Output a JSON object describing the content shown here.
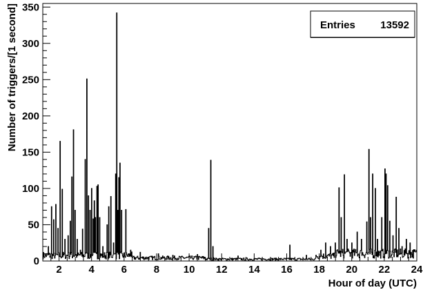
{
  "chart_data": {
    "type": "histogram",
    "title": "",
    "xlabel": "Hour of day (UTC)",
    "ylabel": "Number of triggers/[1 second]",
    "xlim": [
      1,
      24
    ],
    "ylim": [
      0,
      355
    ],
    "x_ticks": [
      2,
      4,
      6,
      8,
      10,
      12,
      14,
      16,
      18,
      20,
      22,
      24
    ],
    "y_ticks": [
      0,
      50,
      100,
      150,
      200,
      250,
      300,
      350
    ],
    "grid": false,
    "legend": "none",
    "stats_box": {
      "label": "Entries",
      "value": "13592",
      "placement": "top-right"
    },
    "baseline": {
      "description_ranges": [
        {
          "from": 1.0,
          "to": 6.5,
          "level": 9
        },
        {
          "from": 6.5,
          "to": 11.0,
          "level": 5
        },
        {
          "from": 11.0,
          "to": 17.8,
          "level": 3
        },
        {
          "from": 17.8,
          "to": 19.0,
          "level": 8
        },
        {
          "from": 19.0,
          "to": 24.0,
          "level": 12
        }
      ]
    },
    "spikes": [
      {
        "x": 1.35,
        "y": 20
      },
      {
        "x": 1.55,
        "y": 75
      },
      {
        "x": 1.68,
        "y": 57
      },
      {
        "x": 1.82,
        "y": 78
      },
      {
        "x": 1.95,
        "y": 45
      },
      {
        "x": 2.08,
        "y": 165
      },
      {
        "x": 2.2,
        "y": 99
      },
      {
        "x": 2.35,
        "y": 30
      },
      {
        "x": 2.55,
        "y": 35
      },
      {
        "x": 2.68,
        "y": 55
      },
      {
        "x": 2.8,
        "y": 116
      },
      {
        "x": 2.9,
        "y": 181
      },
      {
        "x": 3.0,
        "y": 70
      },
      {
        "x": 3.12,
        "y": 30
      },
      {
        "x": 3.3,
        "y": 15
      },
      {
        "x": 3.45,
        "y": 44
      },
      {
        "x": 3.62,
        "y": 140
      },
      {
        "x": 3.7,
        "y": 251
      },
      {
        "x": 3.82,
        "y": 90
      },
      {
        "x": 3.92,
        "y": 70
      },
      {
        "x": 4.02,
        "y": 100
      },
      {
        "x": 4.1,
        "y": 58
      },
      {
        "x": 4.18,
        "y": 83
      },
      {
        "x": 4.25,
        "y": 60
      },
      {
        "x": 4.32,
        "y": 103
      },
      {
        "x": 4.4,
        "y": 105
      },
      {
        "x": 4.5,
        "y": 60
      },
      {
        "x": 4.7,
        "y": 20
      },
      {
        "x": 4.95,
        "y": 50
      },
      {
        "x": 5.05,
        "y": 75
      },
      {
        "x": 5.2,
        "y": 89
      },
      {
        "x": 5.35,
        "y": 25
      },
      {
        "x": 5.48,
        "y": 120
      },
      {
        "x": 5.56,
        "y": 342
      },
      {
        "x": 5.62,
        "y": 70
      },
      {
        "x": 5.68,
        "y": 115
      },
      {
        "x": 5.75,
        "y": 135
      },
      {
        "x": 5.85,
        "y": 70
      },
      {
        "x": 6.12,
        "y": 71
      },
      {
        "x": 6.4,
        "y": 15
      },
      {
        "x": 7.0,
        "y": 12
      },
      {
        "x": 8.1,
        "y": 10
      },
      {
        "x": 9.0,
        "y": 8
      },
      {
        "x": 10.5,
        "y": 9
      },
      {
        "x": 11.2,
        "y": 45
      },
      {
        "x": 11.32,
        "y": 139
      },
      {
        "x": 11.45,
        "y": 20
      },
      {
        "x": 13.0,
        "y": 7
      },
      {
        "x": 16.2,
        "y": 22
      },
      {
        "x": 17.2,
        "y": 8
      },
      {
        "x": 18.1,
        "y": 15
      },
      {
        "x": 18.4,
        "y": 25
      },
      {
        "x": 18.7,
        "y": 20
      },
      {
        "x": 19.0,
        "y": 25
      },
      {
        "x": 19.22,
        "y": 101
      },
      {
        "x": 19.35,
        "y": 60
      },
      {
        "x": 19.55,
        "y": 119
      },
      {
        "x": 19.7,
        "y": 30
      },
      {
        "x": 20.0,
        "y": 25
      },
      {
        "x": 20.35,
        "y": 40
      },
      {
        "x": 20.6,
        "y": 30
      },
      {
        "x": 20.92,
        "y": 54
      },
      {
        "x": 21.05,
        "y": 154
      },
      {
        "x": 21.15,
        "y": 60
      },
      {
        "x": 21.3,
        "y": 120
      },
      {
        "x": 21.45,
        "y": 100
      },
      {
        "x": 21.6,
        "y": 30
      },
      {
        "x": 21.85,
        "y": 60
      },
      {
        "x": 22.05,
        "y": 127
      },
      {
        "x": 22.12,
        "y": 120
      },
      {
        "x": 22.2,
        "y": 104
      },
      {
        "x": 22.35,
        "y": 55
      },
      {
        "x": 22.55,
        "y": 35
      },
      {
        "x": 22.75,
        "y": 88
      },
      {
        "x": 22.9,
        "y": 45
      },
      {
        "x": 23.1,
        "y": 20
      },
      {
        "x": 23.35,
        "y": 30
      },
      {
        "x": 23.6,
        "y": 25
      },
      {
        "x": 23.85,
        "y": 12
      }
    ],
    "line_color": "#000000"
  }
}
